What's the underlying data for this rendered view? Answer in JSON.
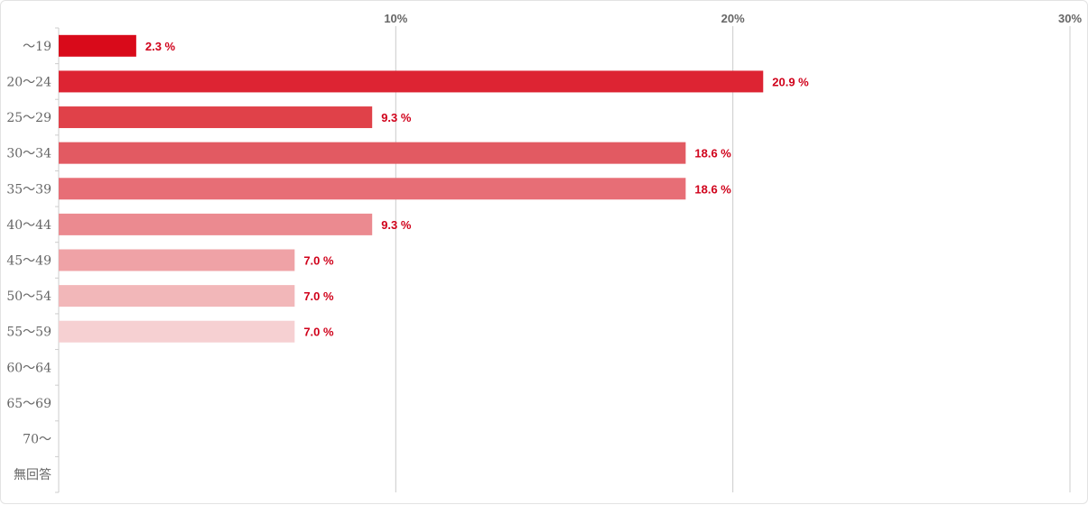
{
  "chart_data": {
    "type": "bar",
    "orientation": "horizontal",
    "categories": [
      "～19",
      "20～24",
      "25～29",
      "30～34",
      "35～39",
      "40～44",
      "45～49",
      "50～54",
      "55～59",
      "60～64",
      "65～69",
      "70～",
      "無回答"
    ],
    "values": [
      2.3,
      20.9,
      9.3,
      18.6,
      18.6,
      9.3,
      7.0,
      7.0,
      7.0,
      null,
      null,
      null,
      null
    ],
    "value_labels": [
      "2.3 %",
      "20.9 %",
      "9.3 %",
      "18.6 %",
      "18.6 %",
      "9.3 %",
      "7.0 %",
      "7.0 %",
      "7.0 %",
      "",
      "",
      "",
      ""
    ],
    "bar_colors": [
      "#d90a1a",
      "#dd2433",
      "#e04149",
      "#e25a62",
      "#e76e76",
      "#eb8a90",
      "#efa2a6",
      "#f2b7b9",
      "#f6d0d2"
    ],
    "label_color": "#d0021b",
    "xlim": [
      0,
      30
    ],
    "xticks": [
      10,
      20,
      30
    ],
    "xtick_labels": [
      "10%",
      "20%",
      "30%"
    ],
    "tick_position": "top",
    "grid": true,
    "title": "",
    "xlabel": "",
    "ylabel": ""
  }
}
